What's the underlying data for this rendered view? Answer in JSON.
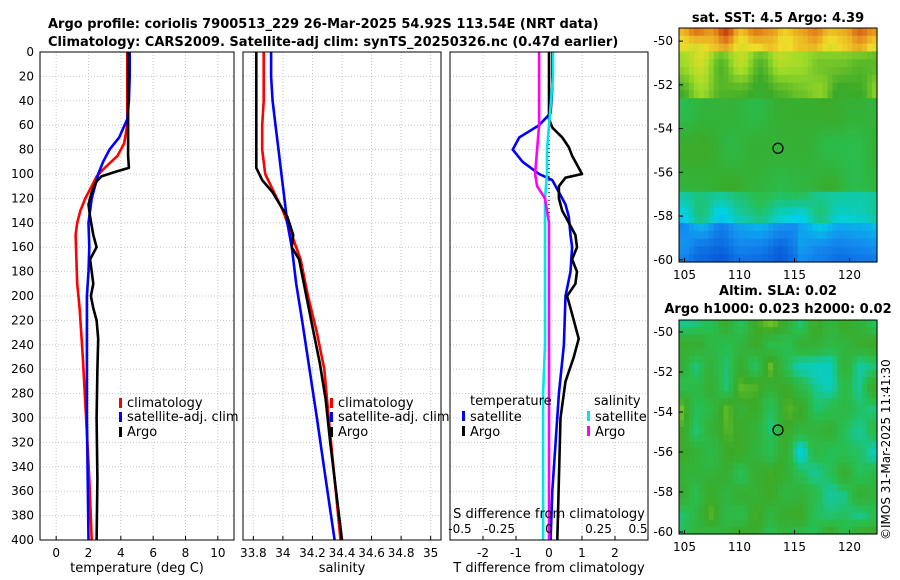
{
  "header": {
    "line1": "Argo profile: coriolis 7900513_229 26-Mar-2025 54.92S 113.54E (NRT data)",
    "line2": "Climatology: CARS2009. Satellite-adj clim: synTS_20250326.nc (0.47d earlier)"
  },
  "colors": {
    "climatology": "#ff0000",
    "satellite": "#0000ff",
    "argo": "#000000",
    "sat_sal": "#00e5ee",
    "argo_sal": "#ff00ff"
  },
  "credit": "©IMOS 31-Mar-2025 11:41:30",
  "chart_data": [
    {
      "type": "line",
      "id": "temperature",
      "xlabel": "temperature (deg C)",
      "ylabel": "",
      "xlim": [
        -1,
        11
      ],
      "ylim": [
        400,
        0
      ],
      "xticks": [
        "0",
        "2",
        "4",
        "6",
        "8",
        "10"
      ],
      "yticks": [
        "0",
        "20",
        "40",
        "60",
        "80",
        "100",
        "120",
        "140",
        "160",
        "180",
        "200",
        "220",
        "240",
        "260",
        "280",
        "300",
        "320",
        "340",
        "360",
        "380",
        "400"
      ],
      "legend": {
        "placement": "lower-right",
        "entries": [
          "climatology",
          "satellite-adj. clim",
          "Argo"
        ]
      },
      "series": [
        {
          "name": "climatology",
          "color": "#ff0000",
          "points": [
            [
              4.4,
              0
            ],
            [
              4.4,
              20
            ],
            [
              4.4,
              40
            ],
            [
              4.4,
              60
            ],
            [
              4.2,
              75
            ],
            [
              3.8,
              85
            ],
            [
              3.0,
              95
            ],
            [
              2.5,
              102
            ],
            [
              2.2,
              110
            ],
            [
              1.8,
              120
            ],
            [
              1.5,
              130
            ],
            [
              1.3,
              140
            ],
            [
              1.2,
              150
            ],
            [
              1.25,
              170
            ],
            [
              1.3,
              190
            ],
            [
              1.45,
              210
            ],
            [
              1.65,
              250
            ],
            [
              1.85,
              300
            ],
            [
              2.05,
              350
            ],
            [
              2.2,
              400
            ]
          ]
        },
        {
          "name": "satellite-adj. clim",
          "color": "#0000ff",
          "points": [
            [
              4.55,
              0
            ],
            [
              4.55,
              20
            ],
            [
              4.5,
              40
            ],
            [
              4.4,
              55
            ],
            [
              3.9,
              70
            ],
            [
              3.3,
              80
            ],
            [
              2.9,
              90
            ],
            [
              2.6,
              100
            ],
            [
              2.4,
              110
            ],
            [
              2.2,
              120
            ],
            [
              2.0,
              140
            ],
            [
              2.05,
              160
            ],
            [
              2.0,
              180
            ],
            [
              1.9,
              200
            ],
            [
              1.9,
              240
            ],
            [
              1.9,
              300
            ],
            [
              1.95,
              350
            ],
            [
              2.0,
              400
            ]
          ]
        },
        {
          "name": "Argo",
          "color": "#000000",
          "points": [
            [
              4.45,
              0
            ],
            [
              4.45,
              20
            ],
            [
              4.45,
              40
            ],
            [
              4.45,
              60
            ],
            [
              4.45,
              75
            ],
            [
              4.45,
              85
            ],
            [
              4.5,
              95
            ],
            [
              3.7,
              98
            ],
            [
              2.8,
              102
            ],
            [
              2.5,
              106
            ],
            [
              2.2,
              115
            ],
            [
              2.0,
              125
            ],
            [
              2.1,
              135
            ],
            [
              2.3,
              150
            ],
            [
              2.5,
              160
            ],
            [
              2.1,
              170
            ],
            [
              2.2,
              180
            ],
            [
              2.3,
              190
            ],
            [
              2.15,
              200
            ],
            [
              2.3,
              210
            ],
            [
              2.5,
              220
            ],
            [
              2.6,
              235
            ],
            [
              2.55,
              260
            ],
            [
              2.5,
              300
            ],
            [
              2.55,
              350
            ],
            [
              2.5,
              400
            ]
          ]
        }
      ]
    },
    {
      "type": "line",
      "id": "salinity",
      "xlabel": "salinity",
      "ylabel": "",
      "xlim": [
        33.73,
        35.07
      ],
      "ylim": [
        400,
        0
      ],
      "xticks": [
        "33.8",
        "34",
        "34.2",
        "34.4",
        "34.6",
        "34.8",
        "35"
      ],
      "legend": {
        "placement": "lower-right",
        "entries": [
          "climatology",
          "satellite-adj. clim",
          "Argo"
        ]
      },
      "series": [
        {
          "name": "climatology",
          "color": "#ff0000",
          "points": [
            [
              33.87,
              0
            ],
            [
              33.87,
              20
            ],
            [
              33.87,
              40
            ],
            [
              33.86,
              60
            ],
            [
              33.86,
              80
            ],
            [
              33.88,
              100
            ],
            [
              33.94,
              115
            ],
            [
              34.0,
              130
            ],
            [
              34.06,
              150
            ],
            [
              34.12,
              170
            ],
            [
              34.17,
              200
            ],
            [
              34.23,
              230
            ],
            [
              34.28,
              260
            ],
            [
              34.31,
              300
            ],
            [
              34.35,
              350
            ],
            [
              34.39,
              400
            ]
          ]
        },
        {
          "name": "satellite-adj. clim",
          "color": "#0000ff",
          "points": [
            [
              33.92,
              0
            ],
            [
              33.92,
              20
            ],
            [
              33.93,
              40
            ],
            [
              33.95,
              60
            ],
            [
              33.97,
              80
            ],
            [
              33.99,
              100
            ],
            [
              34.01,
              120
            ],
            [
              34.03,
              140
            ],
            [
              34.06,
              160
            ],
            [
              34.09,
              190
            ],
            [
              34.13,
              220
            ],
            [
              34.18,
              260
            ],
            [
              34.23,
              300
            ],
            [
              34.29,
              350
            ],
            [
              34.35,
              400
            ]
          ]
        },
        {
          "name": "Argo",
          "color": "#000000",
          "points": [
            [
              33.82,
              0
            ],
            [
              33.82,
              20
            ],
            [
              33.82,
              40
            ],
            [
              33.82,
              60
            ],
            [
              33.82,
              80
            ],
            [
              33.82,
              95
            ],
            [
              33.86,
              105
            ],
            [
              33.93,
              115
            ],
            [
              33.98,
              125
            ],
            [
              34.03,
              135
            ],
            [
              34.07,
              150
            ],
            [
              34.06,
              160
            ],
            [
              34.11,
              170
            ],
            [
              34.15,
              195
            ],
            [
              34.2,
              225
            ],
            [
              34.25,
              255
            ],
            [
              34.29,
              285
            ],
            [
              34.32,
              320
            ],
            [
              34.36,
              360
            ],
            [
              34.4,
              400
            ]
          ]
        }
      ]
    },
    {
      "type": "line",
      "id": "difference",
      "xlabel": "T difference from climatology",
      "x2label": "S difference from climatology",
      "xlim": [
        -3,
        3
      ],
      "ylim": [
        400,
        0
      ],
      "xticks": [
        "-2",
        "-1",
        "0",
        "1",
        "2"
      ],
      "x2ticks": [
        "-0.5",
        "-0.25",
        "0",
        "0.25",
        "0.5"
      ],
      "legend": {
        "placement": "lower",
        "entries": [
          "temperature",
          "satellite",
          "Argo",
          "salinity",
          "satellite",
          "Argo"
        ]
      },
      "series": [
        {
          "name": "temperature satellite",
          "color": "#0000ff",
          "points": [
            [
              0.1,
              0
            ],
            [
              0.1,
              30
            ],
            [
              0.05,
              50
            ],
            [
              -0.3,
              60
            ],
            [
              -0.6,
              65
            ],
            [
              -0.9,
              70
            ],
            [
              -1.1,
              80
            ],
            [
              -0.8,
              90
            ],
            [
              -0.3,
              100
            ],
            [
              0.1,
              105
            ],
            [
              0.3,
              115
            ],
            [
              0.5,
              125
            ],
            [
              0.6,
              135
            ],
            [
              0.65,
              150
            ],
            [
              0.7,
              160
            ],
            [
              0.65,
              180
            ],
            [
              0.5,
              200
            ],
            [
              0.45,
              240
            ],
            [
              0.3,
              280
            ],
            [
              0.2,
              320
            ],
            [
              0.1,
              360
            ],
            [
              0.05,
              400
            ]
          ]
        },
        {
          "name": "temperature Argo",
          "color": "#000000",
          "points": [
            [
              0.0,
              0
            ],
            [
              0.0,
              30
            ],
            [
              0.0,
              55
            ],
            [
              0.1,
              62
            ],
            [
              0.4,
              70
            ],
            [
              0.6,
              78
            ],
            [
              0.7,
              85
            ],
            [
              0.8,
              90
            ],
            [
              0.9,
              95
            ],
            [
              1.0,
              100
            ],
            [
              0.5,
              103
            ],
            [
              0.3,
              110
            ],
            [
              0.3,
              120
            ],
            [
              0.4,
              130
            ],
            [
              0.6,
              140
            ],
            [
              0.8,
              150
            ],
            [
              0.85,
              160
            ],
            [
              0.7,
              170
            ],
            [
              0.85,
              180
            ],
            [
              0.8,
              190
            ],
            [
              0.55,
              200
            ],
            [
              0.65,
              210
            ],
            [
              0.75,
              220
            ],
            [
              0.9,
              235
            ],
            [
              0.75,
              250
            ],
            [
              0.5,
              270
            ],
            [
              0.35,
              300
            ],
            [
              0.3,
              350
            ],
            [
              0.25,
              400
            ]
          ]
        },
        {
          "name": "salinity satellite",
          "color": "#00e5ee",
          "points": [
            [
              0.02,
              0
            ],
            [
              0.02,
              20
            ],
            [
              0.01,
              40
            ],
            [
              0.0,
              60
            ],
            [
              -0.01,
              80
            ],
            [
              -0.01,
              100
            ],
            [
              -0.02,
              120
            ],
            [
              -0.02,
              140
            ],
            [
              -0.02,
              160
            ],
            [
              -0.02,
              200
            ],
            [
              -0.02,
              240
            ],
            [
              -0.03,
              280
            ],
            [
              -0.03,
              320
            ],
            [
              -0.03,
              360
            ],
            [
              -0.03,
              400
            ]
          ]
        },
        {
          "name": "salinity Argo",
          "color": "#ff00ff",
          "points": [
            [
              -0.05,
              0
            ],
            [
              -0.05,
              20
            ],
            [
              -0.05,
              40
            ],
            [
              -0.05,
              60
            ],
            [
              -0.06,
              80
            ],
            [
              -0.07,
              100
            ],
            [
              -0.06,
              110
            ],
            [
              -0.02,
              120
            ],
            [
              0.0,
              140
            ],
            [
              0.0,
              160
            ],
            [
              0.0,
              200
            ],
            [
              0.0,
              240
            ],
            [
              0.0,
              280
            ],
            [
              0.0,
              320
            ],
            [
              0.0,
              360
            ],
            [
              0.0,
              400
            ]
          ]
        }
      ]
    },
    {
      "type": "heatmap",
      "id": "sst-map",
      "title": "sat. SST: 4.5 Argo: 4.39",
      "xticks": [
        "105",
        "110",
        "115",
        "120"
      ],
      "yticks": [
        "-50",
        "-52",
        "-54",
        "-56",
        "-58",
        "-60"
      ],
      "xlim": [
        104.5,
        122.5
      ],
      "ylim": [
        -60.1,
        -49.4
      ],
      "marker": {
        "lon": 113.5,
        "lat": -54.9
      }
    },
    {
      "type": "heatmap",
      "id": "sla-map",
      "title": "Altim. SLA: 0.02",
      "subtitle": "Argo h1000: 0.023 h2000: 0.02",
      "xticks": [
        "105",
        "110",
        "115",
        "120"
      ],
      "yticks": [
        "-50",
        "-52",
        "-54",
        "-56",
        "-58",
        "-60"
      ],
      "xlim": [
        104.5,
        122.5
      ],
      "ylim": [
        -60.1,
        -49.4
      ],
      "marker": {
        "lon": 113.5,
        "lat": -54.9
      }
    }
  ]
}
